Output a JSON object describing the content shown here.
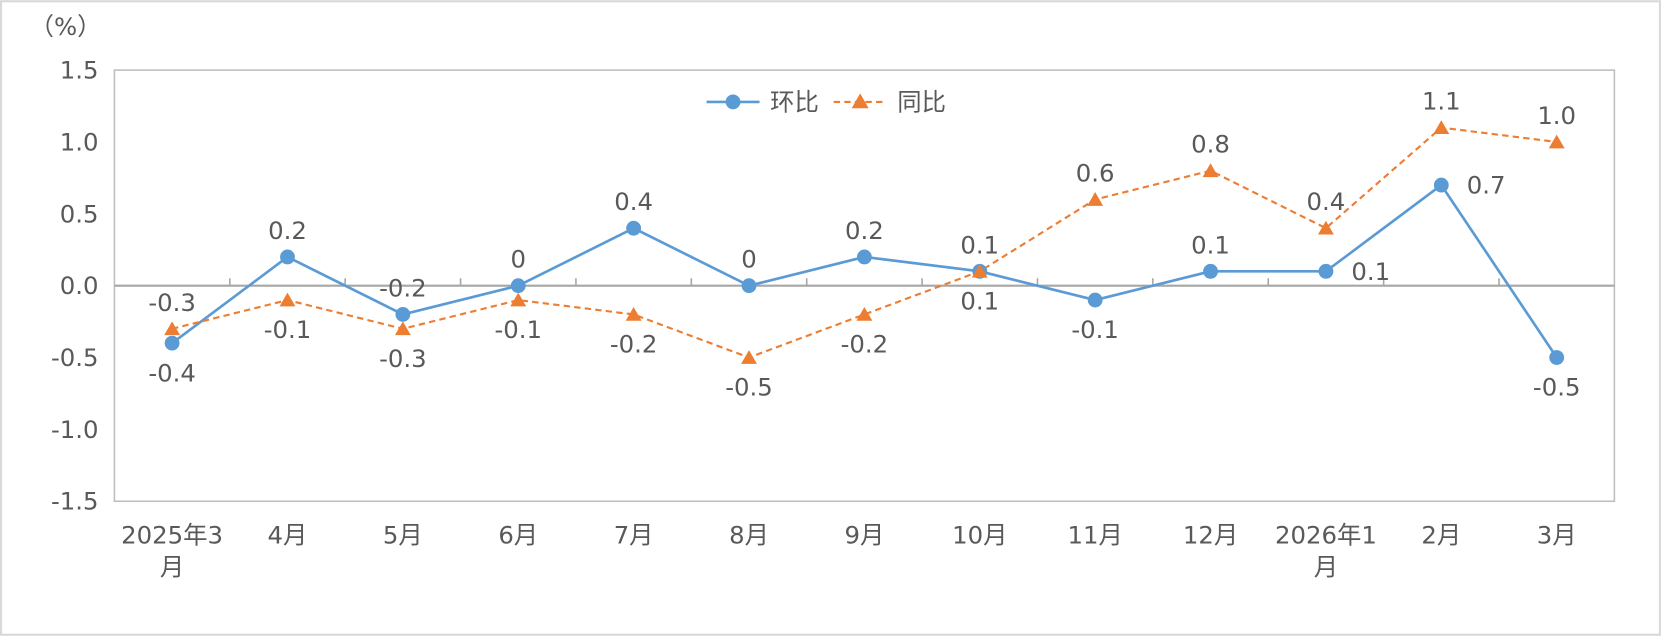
{
  "chart_data": {
    "type": "line",
    "unit_label": "（%）",
    "categories": [
      "2025年3月",
      "4月",
      "5月",
      "6月",
      "7月",
      "8月",
      "9月",
      "10月",
      "11月",
      "12月",
      "2026年1月",
      "2月",
      "3月"
    ],
    "yticks": [
      "1.5",
      "1.0",
      "0.5",
      "0.0",
      "-0.5",
      "-1.0",
      "-1.5"
    ],
    "ylim": [
      -1.5,
      1.5
    ],
    "grid": false,
    "legend": {
      "position": "top-center"
    },
    "series": [
      {
        "name": "环比",
        "color": "#5B9BD5",
        "line_style": "solid",
        "marker": "circle",
        "values": [
          -0.4,
          0.2,
          -0.2,
          0,
          0.4,
          0,
          0.2,
          0.1,
          -0.1,
          0.1,
          0.1,
          0.7,
          -0.5
        ],
        "labels": [
          "-0.4",
          "0.2",
          "-0.2",
          "0",
          "0.4",
          "0",
          "0.2",
          "0.1",
          "-0.1",
          "0.1",
          "0.1",
          "0.7",
          "-0.5"
        ]
      },
      {
        "name": "同比",
        "color": "#ED7D31",
        "line_style": "dashed",
        "marker": "triangle",
        "values": [
          -0.3,
          -0.1,
          -0.3,
          -0.1,
          -0.2,
          -0.5,
          -0.2,
          0.1,
          0.6,
          0.8,
          0.4,
          1.1,
          1.0
        ],
        "labels": [
          "-0.3",
          "-0.1",
          "-0.3",
          "-0.1",
          "-0.2",
          "-0.5",
          "-0.2",
          "0.1",
          "0.6",
          "0.8",
          "0.4",
          "1.1",
          "1.0"
        ]
      }
    ]
  }
}
